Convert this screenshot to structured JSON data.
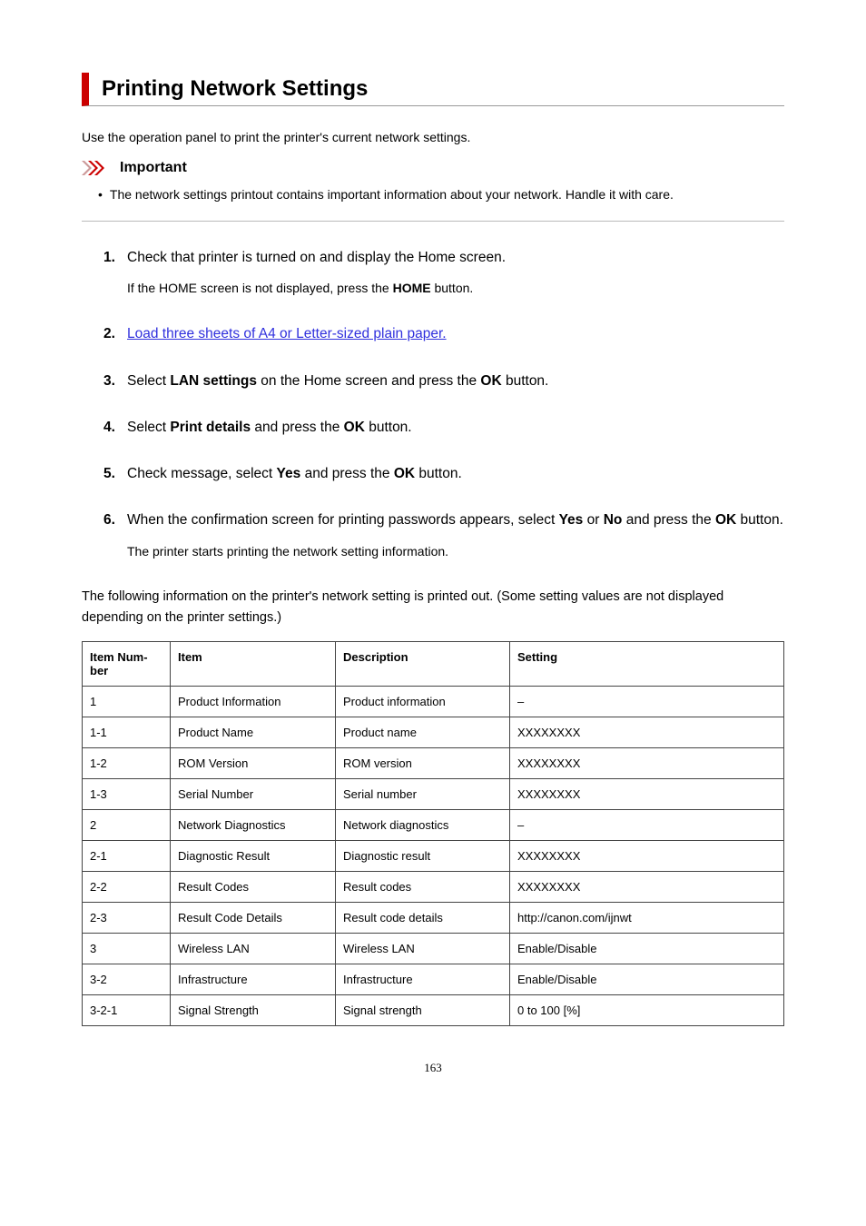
{
  "title": "Printing Network Settings",
  "intro": "Use the operation panel to print the printer's current network settings.",
  "important": {
    "label": "Important",
    "bullet": "The network settings printout contains important information about your network. Handle it with care.",
    "chevron_color": "#cc0000",
    "chevron_muted": "#cc9999"
  },
  "steps": [
    {
      "num": "1.",
      "parts": [
        {
          "t": "Check that printer is turned on and display the Home screen."
        }
      ],
      "sub_parts": [
        {
          "t": "If the HOME screen is not displayed, press the "
        },
        {
          "t": "HOME",
          "bold": true
        },
        {
          "t": " button."
        }
      ]
    },
    {
      "num": "2.",
      "parts": [
        {
          "t": "Load three sheets of A4 or Letter-sized plain paper.",
          "link": true
        }
      ]
    },
    {
      "num": "3.",
      "parts": [
        {
          "t": "Select "
        },
        {
          "t": "LAN settings",
          "bold": true
        },
        {
          "t": " on the Home screen and press the "
        },
        {
          "t": "OK",
          "bold": true
        },
        {
          "t": " button."
        }
      ]
    },
    {
      "num": "4.",
      "parts": [
        {
          "t": "Select "
        },
        {
          "t": "Print details",
          "bold": true
        },
        {
          "t": " and press the "
        },
        {
          "t": "OK",
          "bold": true
        },
        {
          "t": " button."
        }
      ]
    },
    {
      "num": "5.",
      "parts": [
        {
          "t": "Check message, select "
        },
        {
          "t": "Yes",
          "bold": true
        },
        {
          "t": " and press the "
        },
        {
          "t": "OK",
          "bold": true
        },
        {
          "t": " button."
        }
      ]
    },
    {
      "num": "6.",
      "parts": [
        {
          "t": "When the confirmation screen for printing passwords appears, select "
        },
        {
          "t": "Yes",
          "bold": true
        },
        {
          "t": " or "
        },
        {
          "t": "No",
          "bold": true
        },
        {
          "t": " and press the "
        },
        {
          "t": "OK",
          "bold": true
        },
        {
          "t": " button."
        }
      ],
      "sub_parts": [
        {
          "t": "The printer starts printing the network setting information."
        }
      ]
    }
  ],
  "post_text": "The following information on the printer's network setting is printed out. (Some setting values are not displayed depending on the printer settings.)",
  "table": {
    "headers": [
      "Item Number",
      "Item",
      "Description",
      "Setting"
    ],
    "header_display": [
      "Item Num-\nber",
      "Item",
      "Description",
      "Setting"
    ],
    "rows": [
      [
        "1",
        "Product Information",
        "Product information",
        "–"
      ],
      [
        "1-1",
        "Product Name",
        "Product name",
        "XXXXXXXX"
      ],
      [
        "1-2",
        "ROM Version",
        "ROM version",
        "XXXXXXXX"
      ],
      [
        "1-3",
        "Serial Number",
        "Serial number",
        "XXXXXXXX"
      ],
      [
        "2",
        "Network Diagnostics",
        "Network diagnostics",
        "–"
      ],
      [
        "2-1",
        "Diagnostic Result",
        "Diagnostic result",
        "XXXXXXXX"
      ],
      [
        "2-2",
        "Result Codes",
        "Result codes",
        "XXXXXXXX"
      ],
      [
        "2-3",
        "Result Code Details",
        "Result code details",
        "http://canon.com/ijnwt"
      ],
      [
        "3",
        "Wireless LAN",
        "Wireless LAN",
        "Enable/Disable"
      ],
      [
        "3-2",
        "Infrastructure",
        "Infrastructure",
        "Enable/Disable"
      ],
      [
        "3-2-1",
        "Signal Strength",
        "Signal strength",
        "0 to 100 [%]"
      ]
    ]
  },
  "page_number": "163"
}
